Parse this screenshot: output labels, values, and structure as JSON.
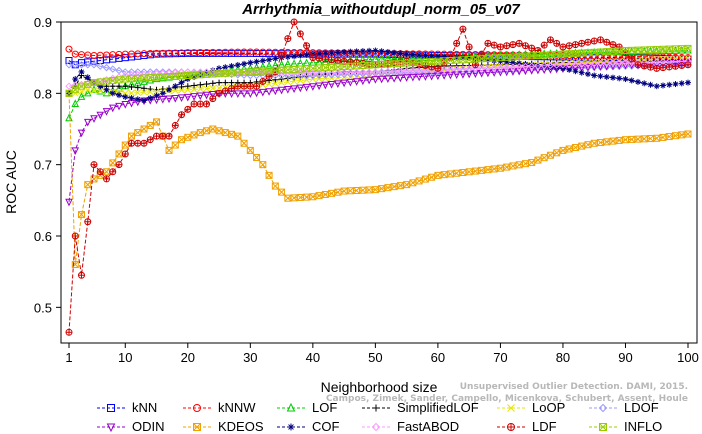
{
  "chart_data": {
    "type": "line",
    "title": "Arrhythmia_withoutdupl_norm_05_v07",
    "xlabel": "Neighborhood size",
    "ylabel": "ROC AUC",
    "xlim": [
      1,
      100
    ],
    "ylim": [
      0.45,
      0.9
    ],
    "xticks": [
      1,
      10,
      20,
      30,
      40,
      50,
      60,
      70,
      80,
      90,
      100
    ],
    "yticks": [
      0.5,
      0.6,
      0.7,
      0.8,
      0.9
    ],
    "grid": false,
    "legend_position": "bottom",
    "series": [
      {
        "name": "kNN",
        "color": "#0000ff",
        "marker": "square",
        "points": [
          [
            1,
            0.846
          ],
          [
            2,
            0.84
          ],
          [
            3,
            0.843
          ],
          [
            5,
            0.845
          ],
          [
            10,
            0.85
          ],
          [
            15,
            0.855
          ],
          [
            20,
            0.856
          ],
          [
            30,
            0.856
          ],
          [
            40,
            0.855
          ],
          [
            50,
            0.855
          ],
          [
            60,
            0.853
          ],
          [
            70,
            0.852
          ],
          [
            80,
            0.851
          ],
          [
            90,
            0.85
          ],
          [
            100,
            0.848
          ]
        ]
      },
      {
        "name": "kNNW",
        "color": "#ff0000",
        "marker": "circle",
        "points": [
          [
            1,
            0.862
          ],
          [
            2,
            0.855
          ],
          [
            5,
            0.853
          ],
          [
            10,
            0.855
          ],
          [
            20,
            0.857
          ],
          [
            30,
            0.858
          ],
          [
            40,
            0.857
          ],
          [
            50,
            0.856
          ],
          [
            60,
            0.855
          ],
          [
            70,
            0.854
          ],
          [
            80,
            0.853
          ],
          [
            90,
            0.852
          ],
          [
            100,
            0.85
          ]
        ]
      },
      {
        "name": "LOF",
        "color": "#00cc00",
        "marker": "triangle-up",
        "points": [
          [
            1,
            0.765
          ],
          [
            2,
            0.785
          ],
          [
            3,
            0.795
          ],
          [
            5,
            0.805
          ],
          [
            7,
            0.8
          ],
          [
            10,
            0.81
          ],
          [
            15,
            0.82
          ],
          [
            20,
            0.825
          ],
          [
            25,
            0.83
          ],
          [
            30,
            0.835
          ],
          [
            35,
            0.84
          ],
          [
            40,
            0.843
          ],
          [
            45,
            0.845
          ],
          [
            50,
            0.848
          ],
          [
            60,
            0.85
          ],
          [
            70,
            0.853
          ],
          [
            80,
            0.856
          ],
          [
            90,
            0.858
          ],
          [
            100,
            0.86
          ]
        ]
      },
      {
        "name": "SimplifiedLOF",
        "color": "#000000",
        "marker": "plus",
        "points": [
          [
            1,
            0.8
          ],
          [
            2,
            0.81
          ],
          [
            3,
            0.825
          ],
          [
            4,
            0.82
          ],
          [
            6,
            0.81
          ],
          [
            10,
            0.81
          ],
          [
            15,
            0.805
          ],
          [
            20,
            0.81
          ],
          [
            25,
            0.815
          ],
          [
            30,
            0.815
          ],
          [
            35,
            0.82
          ],
          [
            40,
            0.825
          ],
          [
            45,
            0.83
          ],
          [
            50,
            0.83
          ],
          [
            55,
            0.835
          ],
          [
            60,
            0.838
          ],
          [
            70,
            0.84
          ],
          [
            80,
            0.843
          ],
          [
            90,
            0.845
          ],
          [
            100,
            0.848
          ]
        ]
      },
      {
        "name": "LoOP",
        "color": "#e6e600",
        "marker": "x",
        "points": [
          [
            1,
            0.8
          ],
          [
            2,
            0.8
          ],
          [
            4,
            0.805
          ],
          [
            10,
            0.8
          ],
          [
            20,
            0.805
          ],
          [
            30,
            0.81
          ],
          [
            40,
            0.82
          ],
          [
            50,
            0.825
          ],
          [
            60,
            0.832
          ],
          [
            70,
            0.838
          ],
          [
            80,
            0.842
          ],
          [
            90,
            0.845
          ],
          [
            100,
            0.85
          ]
        ]
      },
      {
        "name": "LDOF",
        "color": "#9999ff",
        "marker": "diamond",
        "points": [
          [
            1,
            0.84
          ],
          [
            5,
            0.84
          ],
          [
            10,
            0.83
          ],
          [
            20,
            0.83
          ],
          [
            30,
            0.825
          ],
          [
            40,
            0.825
          ],
          [
            50,
            0.828
          ],
          [
            60,
            0.83
          ],
          [
            70,
            0.833
          ],
          [
            80,
            0.835
          ],
          [
            90,
            0.838
          ],
          [
            100,
            0.84
          ]
        ]
      },
      {
        "name": "ODIN",
        "color": "#9900cc",
        "marker": "triangle-down",
        "points": [
          [
            1,
            0.648
          ],
          [
            2,
            0.72
          ],
          [
            3,
            0.745
          ],
          [
            4,
            0.76
          ],
          [
            6,
            0.77
          ],
          [
            8,
            0.78
          ],
          [
            10,
            0.785
          ],
          [
            13,
            0.79
          ],
          [
            16,
            0.792
          ],
          [
            20,
            0.795
          ],
          [
            25,
            0.8
          ],
          [
            30,
            0.8
          ],
          [
            35,
            0.805
          ],
          [
            40,
            0.81
          ],
          [
            45,
            0.815
          ],
          [
            50,
            0.82
          ],
          [
            60,
            0.825
          ],
          [
            70,
            0.83
          ],
          [
            80,
            0.835
          ],
          [
            90,
            0.84
          ],
          [
            100,
            0.843
          ]
        ]
      },
      {
        "name": "KDEOS",
        "color": "#f0a000",
        "marker": "square-x",
        "points": [
          [
            1,
            0.8
          ],
          [
            2,
            0.56
          ],
          [
            3,
            0.63
          ],
          [
            4,
            0.672
          ],
          [
            5,
            0.68
          ],
          [
            7,
            0.69
          ],
          [
            9,
            0.715
          ],
          [
            11,
            0.74
          ],
          [
            13,
            0.75
          ],
          [
            15,
            0.76
          ],
          [
            17,
            0.72
          ],
          [
            19,
            0.735
          ],
          [
            22,
            0.745
          ],
          [
            24,
            0.75
          ],
          [
            26,
            0.745
          ],
          [
            28,
            0.74
          ],
          [
            30,
            0.72
          ],
          [
            32,
            0.7
          ],
          [
            34,
            0.67
          ],
          [
            36,
            0.653
          ],
          [
            40,
            0.655
          ],
          [
            45,
            0.663
          ],
          [
            50,
            0.665
          ],
          [
            55,
            0.672
          ],
          [
            60,
            0.685
          ],
          [
            65,
            0.69
          ],
          [
            70,
            0.695
          ],
          [
            75,
            0.703
          ],
          [
            80,
            0.72
          ],
          [
            85,
            0.73
          ],
          [
            90,
            0.735
          ],
          [
            95,
            0.737
          ],
          [
            100,
            0.743
          ]
        ]
      },
      {
        "name": "COF",
        "color": "#000080",
        "marker": "asterisk",
        "points": [
          [
            1,
            0.8
          ],
          [
            2,
            0.82
          ],
          [
            3,
            0.83
          ],
          [
            5,
            0.815
          ],
          [
            8,
            0.8
          ],
          [
            10,
            0.795
          ],
          [
            13,
            0.79
          ],
          [
            16,
            0.8
          ],
          [
            20,
            0.82
          ],
          [
            25,
            0.835
          ],
          [
            30,
            0.843
          ],
          [
            35,
            0.85
          ],
          [
            40,
            0.855
          ],
          [
            45,
            0.858
          ],
          [
            50,
            0.86
          ],
          [
            55,
            0.855
          ],
          [
            60,
            0.852
          ],
          [
            65,
            0.85
          ],
          [
            70,
            0.845
          ],
          [
            75,
            0.84
          ],
          [
            80,
            0.835
          ],
          [
            85,
            0.825
          ],
          [
            90,
            0.82
          ],
          [
            95,
            0.81
          ],
          [
            100,
            0.815
          ]
        ]
      },
      {
        "name": "FastABOD",
        "color": "#ff99ff",
        "marker": "diamond",
        "points": [
          [
            1,
            0.81
          ],
          [
            5,
            0.815
          ],
          [
            10,
            0.825
          ],
          [
            20,
            0.83
          ],
          [
            30,
            0.83
          ],
          [
            40,
            0.828
          ],
          [
            50,
            0.83
          ],
          [
            60,
            0.833
          ],
          [
            70,
            0.836
          ],
          [
            80,
            0.84
          ],
          [
            90,
            0.843
          ],
          [
            100,
            0.845
          ]
        ]
      },
      {
        "name": "LDF",
        "color": "#cc0000",
        "marker": "circle-plus",
        "points": [
          [
            1,
            0.465
          ],
          [
            2,
            0.6
          ],
          [
            3,
            0.545
          ],
          [
            4,
            0.62
          ],
          [
            5,
            0.7
          ],
          [
            7,
            0.68
          ],
          [
            9,
            0.7
          ],
          [
            11,
            0.73
          ],
          [
            13,
            0.73
          ],
          [
            15,
            0.74
          ],
          [
            17,
            0.74
          ],
          [
            19,
            0.77
          ],
          [
            21,
            0.785
          ],
          [
            23,
            0.785
          ],
          [
            25,
            0.8
          ],
          [
            28,
            0.81
          ],
          [
            31,
            0.81
          ],
          [
            34,
            0.83
          ],
          [
            37,
            0.9
          ],
          [
            40,
            0.85
          ],
          [
            45,
            0.845
          ],
          [
            50,
            0.84
          ],
          [
            55,
            0.845
          ],
          [
            60,
            0.835
          ],
          [
            62,
            0.85
          ],
          [
            64,
            0.89
          ],
          [
            66,
            0.84
          ],
          [
            68,
            0.87
          ],
          [
            70,
            0.865
          ],
          [
            73,
            0.87
          ],
          [
            76,
            0.86
          ],
          [
            78,
            0.875
          ],
          [
            80,
            0.865
          ],
          [
            83,
            0.87
          ],
          [
            86,
            0.875
          ],
          [
            89,
            0.865
          ],
          [
            92,
            0.84
          ],
          [
            95,
            0.835
          ],
          [
            100,
            0.84
          ]
        ]
      },
      {
        "name": "INFLO",
        "color": "#99cc00",
        "marker": "square-x",
        "points": [
          [
            1,
            0.8
          ],
          [
            3,
            0.81
          ],
          [
            5,
            0.815
          ],
          [
            10,
            0.82
          ],
          [
            20,
            0.825
          ],
          [
            30,
            0.83
          ],
          [
            40,
            0.835
          ],
          [
            50,
            0.84
          ],
          [
            60,
            0.845
          ],
          [
            70,
            0.85
          ],
          [
            80,
            0.855
          ],
          [
            90,
            0.86
          ],
          [
            100,
            0.863
          ]
        ]
      }
    ]
  },
  "watermark": {
    "line1": "Unsupervised Outlier Detection. DAMI, 2015.",
    "line2": "Campos, Zimek, Sander, Campello, Micenkova, Schubert, Assent, Houle"
  }
}
